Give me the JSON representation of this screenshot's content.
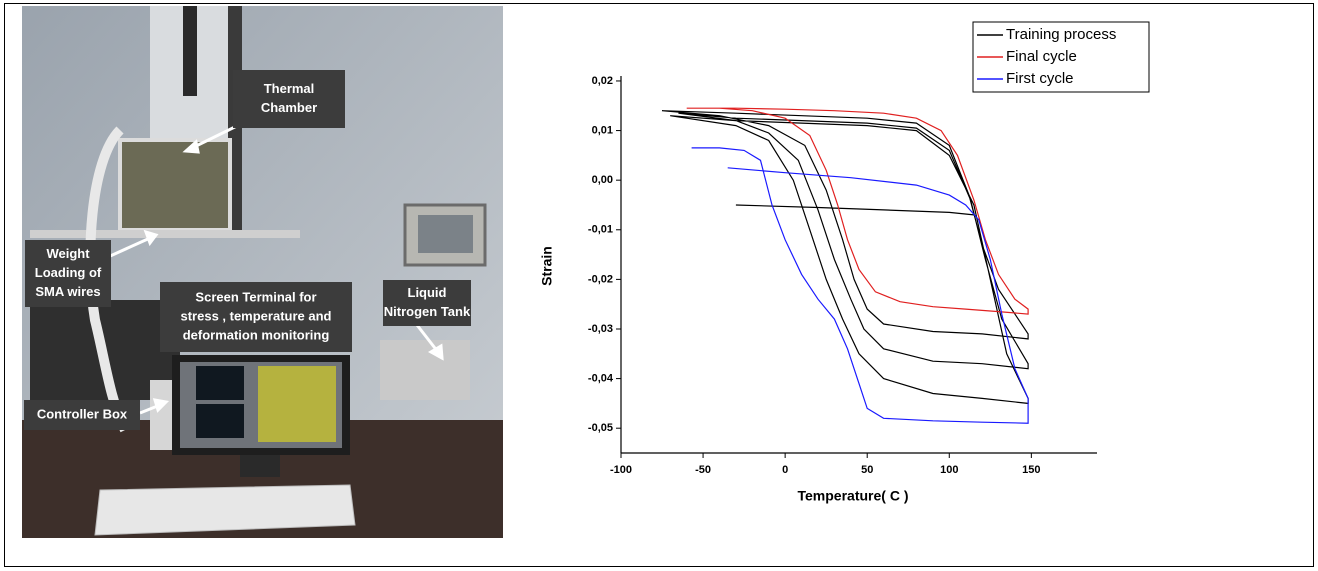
{
  "photo": {
    "labels": [
      {
        "lines": [
          "Thermal",
          "Chamber"
        ]
      },
      {
        "lines": [
          "Weight",
          "Loading of",
          "SMA wires"
        ]
      },
      {
        "lines": [
          "Screen Terminal for",
          "stress , temperature and",
          "deformation monitoring"
        ]
      },
      {
        "lines": [
          "Liquid",
          "Nitrogen Tank"
        ]
      },
      {
        "lines": [
          "Controller Box"
        ]
      }
    ]
  },
  "chart_data": {
    "type": "line",
    "x_label": "Temperature( C )",
    "y_label": "Strain",
    "xlim": [
      -100,
      190
    ],
    "ylim": [
      -0.055,
      0.021
    ],
    "xticks": [
      -100,
      -50,
      0,
      50,
      100,
      150
    ],
    "yticks": [
      {
        "value": 0.02,
        "label": "0,02"
      },
      {
        "value": 0.01,
        "label": "0,01"
      },
      {
        "value": 0,
        "label": "0,00"
      },
      {
        "value": -0.01,
        "label": "-0,01"
      },
      {
        "value": -0.02,
        "label": "-0,02"
      },
      {
        "value": -0.03,
        "label": "-0,03"
      },
      {
        "value": -0.04,
        "label": "-0,04"
      },
      {
        "value": -0.05,
        "label": "-0,05"
      }
    ],
    "legend": "upper right",
    "series": [
      {
        "name": "Training process",
        "color": "#000000",
        "x": [
          -70,
          -30,
          10,
          50,
          80,
          100,
          115,
          125,
          135,
          148,
          148,
          120,
          90,
          60,
          45,
          35,
          25,
          15,
          5,
          -10,
          -30,
          -70,
          null,
          -65,
          -30,
          10,
          50,
          80,
          100,
          113,
          122,
          132,
          148,
          148,
          120,
          90,
          60,
          48,
          40,
          30,
          20,
          8,
          -10,
          -30,
          -65,
          null,
          -75,
          -30,
          10,
          50,
          80,
          100,
          112,
          120,
          130,
          148,
          148,
          120,
          90,
          60,
          50,
          42,
          35,
          25,
          12,
          -10,
          -40,
          -75,
          null,
          -30,
          20,
          60,
          100,
          115
        ],
        "values": [
          0.013,
          0.012,
          0.0115,
          0.011,
          0.01,
          0.005,
          -0.005,
          -0.02,
          -0.035,
          -0.044,
          -0.045,
          -0.044,
          -0.043,
          -0.04,
          -0.035,
          -0.028,
          -0.02,
          -0.01,
          0.0,
          0.008,
          0.011,
          0.013,
          null,
          0.0135,
          0.0125,
          0.012,
          0.0115,
          0.0105,
          0.006,
          -0.004,
          -0.016,
          -0.028,
          -0.037,
          -0.038,
          -0.037,
          -0.0365,
          -0.034,
          -0.03,
          -0.024,
          -0.016,
          -0.006,
          0.004,
          0.0095,
          0.012,
          0.0135,
          null,
          0.014,
          0.0135,
          0.013,
          0.0125,
          0.0115,
          0.007,
          -0.003,
          -0.013,
          -0.022,
          -0.031,
          -0.032,
          -0.031,
          -0.0305,
          -0.029,
          -0.026,
          -0.02,
          -0.012,
          -0.002,
          0.007,
          0.011,
          0.013,
          0.014,
          null,
          -0.005,
          -0.0055,
          -0.006,
          -0.0065,
          -0.007
        ]
      },
      {
        "name": "Final cycle",
        "color": "#e02020",
        "x": [
          -60,
          -30,
          0,
          30,
          60,
          80,
          95,
          105,
          115,
          122,
          130,
          140,
          148,
          148,
          130,
          110,
          90,
          70,
          55,
          45,
          38,
          32,
          25,
          15,
          0,
          -20,
          -40,
          -60
        ],
        "values": [
          0.0145,
          0.0145,
          0.0143,
          0.014,
          0.0135,
          0.0125,
          0.01,
          0.005,
          -0.004,
          -0.012,
          -0.019,
          -0.024,
          -0.026,
          -0.027,
          -0.0265,
          -0.026,
          -0.0255,
          -0.0245,
          -0.0225,
          -0.018,
          -0.012,
          -0.005,
          0.002,
          0.009,
          0.0125,
          0.014,
          0.0145,
          0.0145
        ]
      },
      {
        "name": "First cycle",
        "color": "#1a1aff",
        "x": [
          -35,
          0,
          40,
          80,
          100,
          110,
          118,
          125,
          132,
          140,
          148,
          148,
          120,
          90,
          60,
          50,
          45,
          38,
          30,
          20,
          10,
          0,
          -8,
          -15,
          -25,
          -40,
          -57
        ],
        "values": [
          0.0025,
          0.0015,
          0.0005,
          -0.001,
          -0.003,
          -0.005,
          -0.008,
          -0.016,
          -0.027,
          -0.038,
          -0.044,
          -0.049,
          -0.0488,
          -0.0485,
          -0.048,
          -0.046,
          -0.041,
          -0.034,
          -0.028,
          -0.024,
          -0.019,
          -0.012,
          -0.005,
          0.004,
          0.006,
          0.0065,
          0.0065
        ]
      }
    ]
  }
}
